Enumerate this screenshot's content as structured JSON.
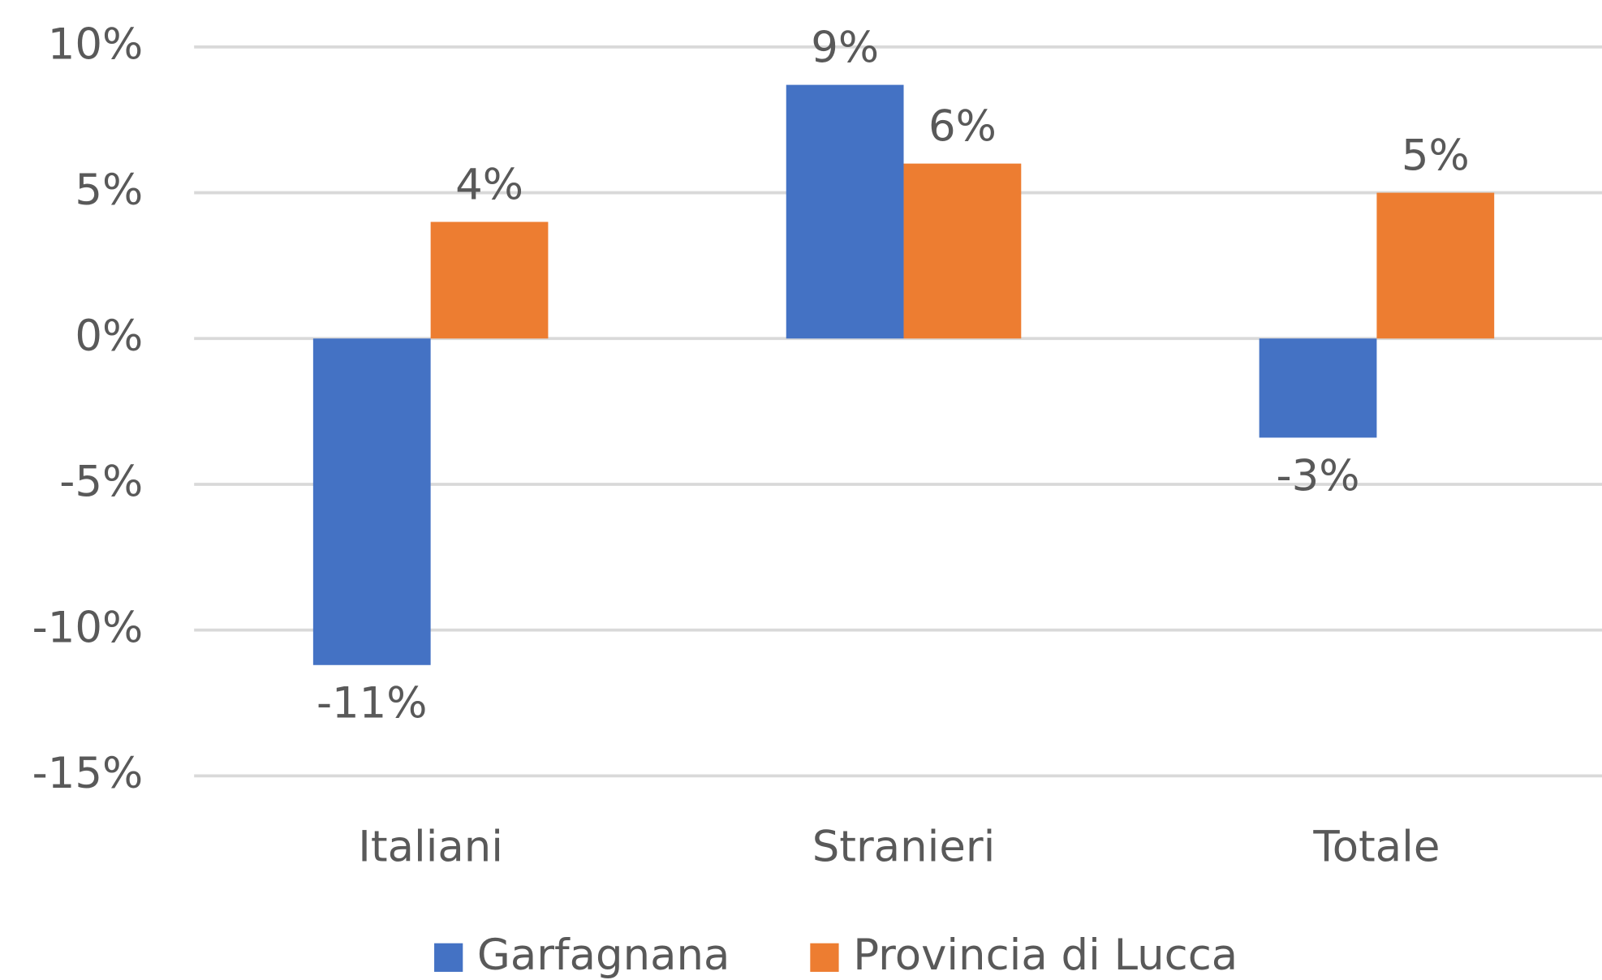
{
  "chart_data": {
    "type": "bar",
    "categories": [
      "Italiani",
      "Stranieri",
      "Totale"
    ],
    "series": [
      {
        "name": "Garfagnana",
        "color": "#4472c4",
        "values": [
          -11.2,
          8.7,
          -3.4
        ],
        "value_labels": [
          "-11%",
          "9%",
          "-3%"
        ]
      },
      {
        "name": "Provincia di Lucca",
        "color": "#ed7d31",
        "values": [
          4,
          6,
          5
        ],
        "value_labels": [
          "4%",
          "6%",
          "5%"
        ]
      }
    ],
    "ylim": [
      -15,
      10
    ],
    "yticks": [
      {
        "value": -15,
        "label": "-15%"
      },
      {
        "value": -10,
        "label": "-10%"
      },
      {
        "value": -5,
        "label": "-5%"
      },
      {
        "value": 0,
        "label": "0%"
      },
      {
        "value": 5,
        "label": "5%"
      },
      {
        "value": 10,
        "label": "10%"
      }
    ],
    "grid": true,
    "legend": "bottom"
  }
}
